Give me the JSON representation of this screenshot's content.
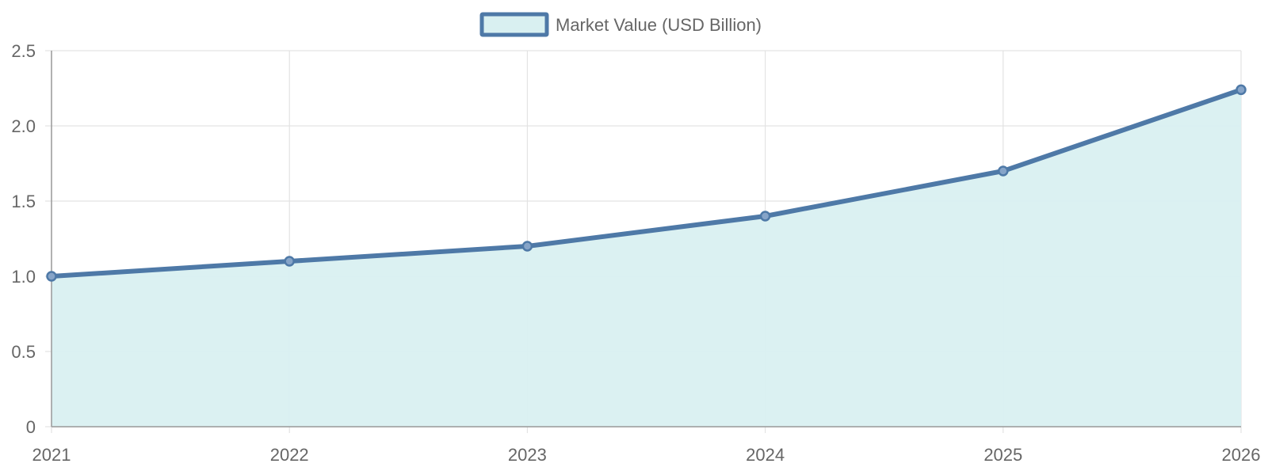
{
  "colors": {
    "line": "#4e79a7",
    "fill": "#d9f0f1",
    "grid": "#e3e3e3",
    "axis": "#999999",
    "text": "#666666",
    "point_fill": "#86a4c8"
  },
  "chart_data": {
    "type": "area",
    "title": "",
    "xlabel": "",
    "ylabel": "",
    "categories": [
      "2021",
      "2022",
      "2023",
      "2024",
      "2025",
      "2026"
    ],
    "series": [
      {
        "name": "Market Value (USD Billion)",
        "values": [
          1.0,
          1.1,
          1.2,
          1.4,
          1.7,
          2.24
        ]
      }
    ],
    "ylim": [
      0,
      2.5
    ],
    "y_ticks": [
      "0",
      "0.5",
      "1.0",
      "1.5",
      "2.0",
      "2.5"
    ],
    "grid": true,
    "legend_position": "top-center"
  }
}
